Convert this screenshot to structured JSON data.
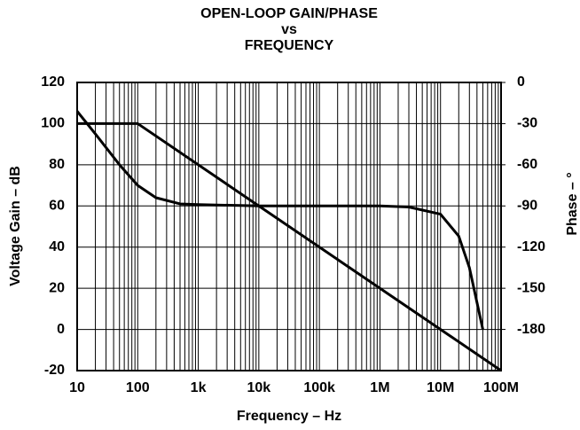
{
  "chart_data": {
    "type": "line",
    "title": [
      "OPEN-LOOP GAIN/PHASE",
      "vs",
      "FREQUENCY"
    ],
    "xlabel": "Frequency – Hz",
    "ylabel": "Voltage Gain – dB",
    "y2label": "Phase – °",
    "xscale": "log",
    "xlim": [
      10,
      100000000
    ],
    "xticks": [
      {
        "value": 10,
        "label": "10"
      },
      {
        "value": 100,
        "label": "100"
      },
      {
        "value": 1000,
        "label": "1k"
      },
      {
        "value": 10000,
        "label": "10k"
      },
      {
        "value": 100000,
        "label": "100k"
      },
      {
        "value": 1000000,
        "label": "1M"
      },
      {
        "value": 10000000,
        "label": "10M"
      },
      {
        "value": 100000000,
        "label": "100M"
      }
    ],
    "ylim": [
      -20,
      120
    ],
    "yticks": [
      -20,
      0,
      20,
      40,
      60,
      80,
      100,
      120
    ],
    "y2lim": [
      -210,
      0
    ],
    "y2ticks": [
      -180,
      -150,
      -120,
      -90,
      -60,
      -30,
      0
    ],
    "grid": true,
    "series": [
      {
        "color": "#000000",
        "x": [
          10,
          100,
          100000000
        ],
        "values": [
          100,
          100,
          -20
        ]
      },
      {
        "color": "#000000",
        "axis": "y2",
        "x": [
          10,
          20,
          50,
          100,
          200,
          500,
          1000,
          10000,
          1000000,
          3000000,
          10000000,
          20000000,
          30000000,
          50000000
        ],
        "values": [
          -21,
          -37.5,
          -60,
          -75,
          -84,
          -88.5,
          -89,
          -90,
          -90,
          -90.8,
          -96,
          -112,
          -135,
          -180
        ]
      }
    ]
  }
}
